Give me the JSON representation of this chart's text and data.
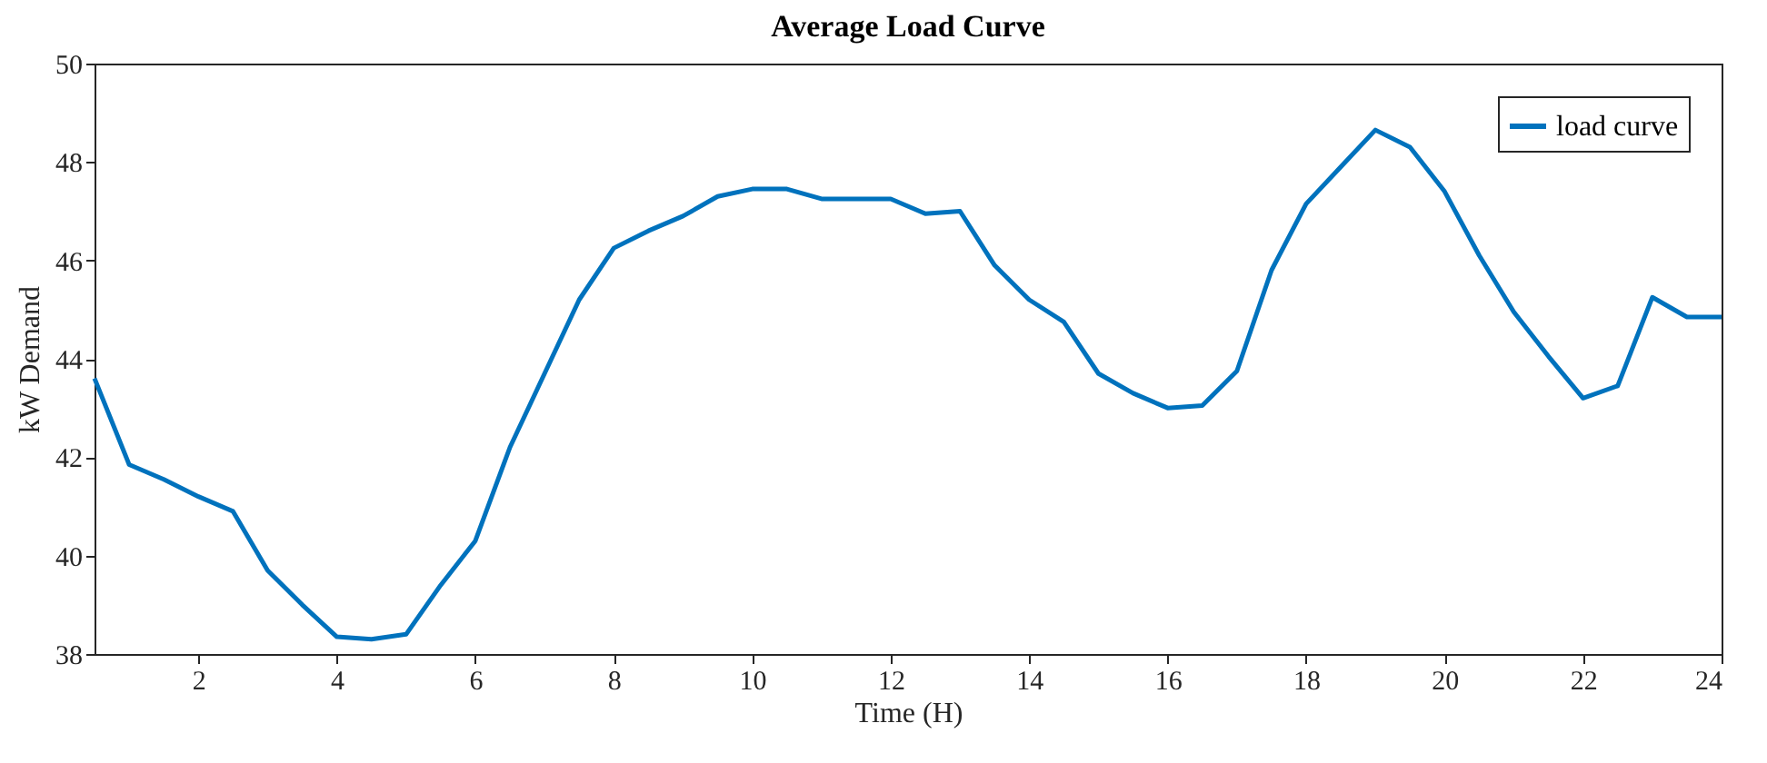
{
  "chart_data": {
    "type": "line",
    "title": "Average Load Curve",
    "xlabel": "Time (H)",
    "ylabel": "kW Demand",
    "x": [
      0.5,
      1,
      1.5,
      2,
      2.5,
      3,
      3.5,
      4,
      4.5,
      5,
      5.5,
      6,
      6.5,
      7,
      7.5,
      8,
      8.5,
      9,
      9.5,
      10,
      10.5,
      11,
      11.5,
      12,
      12.5,
      13,
      13.5,
      14,
      14.5,
      15,
      15.5,
      16,
      16.5,
      17,
      17.5,
      18,
      18.5,
      19,
      19.5,
      20,
      20.5,
      21,
      21.5,
      22,
      22.5,
      23,
      23.5,
      24
    ],
    "series": [
      {
        "name": "load curve",
        "color": "#0072bd",
        "values": [
          43.6,
          41.85,
          41.55,
          41.2,
          40.9,
          39.7,
          39.0,
          38.35,
          38.3,
          38.4,
          39.4,
          40.3,
          42.2,
          43.7,
          45.2,
          46.25,
          46.6,
          46.9,
          47.3,
          47.45,
          47.45,
          47.25,
          47.25,
          47.25,
          46.95,
          47.0,
          45.9,
          45.2,
          44.75,
          43.7,
          43.3,
          43.0,
          43.05,
          43.75,
          45.8,
          47.15,
          47.9,
          48.65,
          48.3,
          47.4,
          46.1,
          44.95,
          44.05,
          43.2,
          43.45,
          45.25,
          44.85,
          44.85
        ]
      }
    ],
    "xlim": [
      0.5,
      24
    ],
    "xticks": [
      2,
      4,
      6,
      8,
      10,
      12,
      14,
      16,
      18,
      20,
      22,
      24
    ],
    "ylim": [
      38,
      50
    ],
    "yticks": [
      38,
      40,
      42,
      44,
      46,
      48,
      50
    ],
    "grid": false,
    "legend": "top right",
    "marker": "none",
    "line_style": "solid"
  }
}
